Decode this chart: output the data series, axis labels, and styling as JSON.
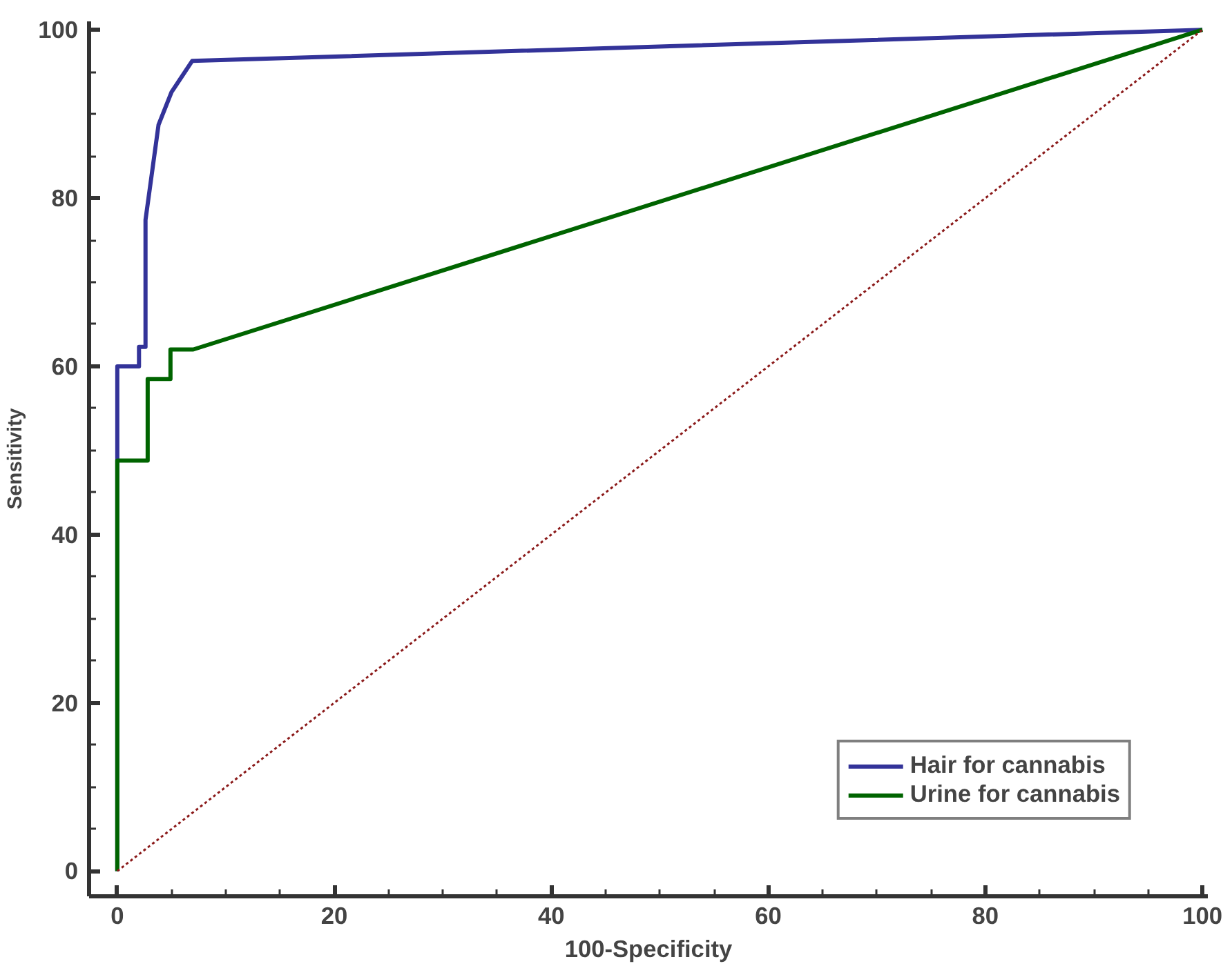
{
  "chart_data": {
    "type": "line",
    "xlabel": "100-Specificity",
    "ylabel": "Sensitivity",
    "xlim": [
      -2.6,
      100.5
    ],
    "ylim": [
      -3,
      101
    ],
    "xticks": [
      0,
      {
        "value": 5,
        "label": null
      },
      {
        "value": 10,
        "label": null
      },
      {
        "value": 15,
        "label": null
      },
      20,
      {
        "value": 25,
        "label": null
      },
      {
        "value": 30,
        "label": null
      },
      {
        "value": 35,
        "label": null
      },
      40,
      {
        "value": 45,
        "label": null
      },
      {
        "value": 50,
        "label": null
      },
      {
        "value": 55,
        "label": null
      },
      60,
      {
        "value": 65,
        "label": null
      },
      {
        "value": 70,
        "label": null
      },
      {
        "value": 75,
        "label": null
      },
      80,
      {
        "value": 85,
        "label": null
      },
      {
        "value": 90,
        "label": null
      },
      {
        "value": 95,
        "label": null
      },
      100
    ],
    "yticks": [
      0,
      {
        "value": 5,
        "label": null
      },
      {
        "value": 10,
        "label": null
      },
      {
        "value": 15,
        "label": null
      },
      20,
      {
        "value": 25,
        "label": null
      },
      {
        "value": 30,
        "label": null
      },
      {
        "value": 35,
        "label": null
      },
      40,
      {
        "value": 45,
        "label": null
      },
      {
        "value": 50,
        "label": null
      },
      {
        "value": 55,
        "label": null
      },
      60,
      {
        "value": 65,
        "label": null
      },
      {
        "value": 70,
        "label": null
      },
      {
        "value": 75,
        "label": null
      },
      80,
      {
        "value": 85,
        "label": null
      },
      {
        "value": 90,
        "label": null
      },
      {
        "value": 95,
        "label": null
      },
      100
    ],
    "grid": false,
    "legend": "bottom right",
    "marker": "none",
    "series": [
      {
        "name": "Hair for cannabis",
        "color": "#333399",
        "x": [
          0,
          0,
          2.0,
          2.0,
          2.6,
          2.6,
          3.8,
          5.0,
          6.9,
          100
        ],
        "values": [
          0,
          60,
          60,
          62.3,
          62.3,
          77.4,
          88.7,
          92.6,
          96.3,
          100
        ]
      },
      {
        "name": "Urine for cannabis",
        "color": "#006400",
        "x": [
          0,
          0,
          2.8,
          2.8,
          4.9,
          4.9,
          7.0,
          100
        ],
        "values": [
          0,
          48.8,
          48.8,
          58.5,
          58.5,
          62,
          62,
          100
        ]
      },
      {
        "color": "#8b1a1a",
        "line_style": "dotted",
        "x": [
          0,
          100
        ],
        "values": [
          0,
          100
        ]
      }
    ]
  }
}
